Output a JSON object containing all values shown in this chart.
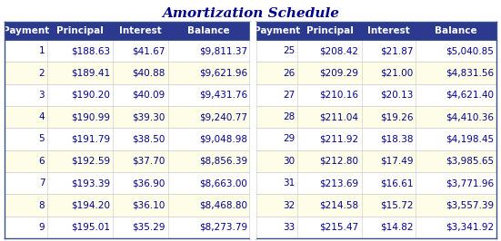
{
  "title": "Amortization Schedule",
  "header": [
    "Payment",
    "Principal",
    "Interest",
    "Balance"
  ],
  "left_data": [
    [
      "1",
      "$188.63",
      "$41.67",
      "$9,811.37"
    ],
    [
      "2",
      "$189.41",
      "$40.88",
      "$9,621.96"
    ],
    [
      "3",
      "$190.20",
      "$40.09",
      "$9,431.76"
    ],
    [
      "4",
      "$190.99",
      "$39.30",
      "$9,240.77"
    ],
    [
      "5",
      "$191.79",
      "$38.50",
      "$9,048.98"
    ],
    [
      "6",
      "$192.59",
      "$37.70",
      "$8,856.39"
    ],
    [
      "7",
      "$193.39",
      "$36.90",
      "$8,663.00"
    ],
    [
      "8",
      "$194.20",
      "$36.10",
      "$8,468.80"
    ],
    [
      "9",
      "$195.01",
      "$35.29",
      "$8,273.79"
    ]
  ],
  "right_data": [
    [
      "25",
      "$208.42",
      "$21.87",
      "$5,040.85"
    ],
    [
      "26",
      "$209.29",
      "$21.00",
      "$4,831.56"
    ],
    [
      "27",
      "$210.16",
      "$20.13",
      "$4,621.40"
    ],
    [
      "28",
      "$211.04",
      "$19.26",
      "$4,410.36"
    ],
    [
      "29",
      "$211.92",
      "$18.38",
      "$4,198.45"
    ],
    [
      "30",
      "$212.80",
      "$17.49",
      "$3,985.65"
    ],
    [
      "31",
      "$213.69",
      "$16.61",
      "$3,771.96"
    ],
    [
      "32",
      "$214.58",
      "$15.72",
      "$3,557.39"
    ],
    [
      "33",
      "$215.47",
      "$14.82",
      "$3,341.92"
    ]
  ],
  "header_bg": "#2B3A8F",
  "header_fg": "#FFFFFF",
  "row_white_bg": "#FFFFFF",
  "row_cream_bg": "#FDFDE8",
  "cell_text_color": "#00008B",
  "title_color": "#00008B",
  "title_fontsize": 11,
  "header_fontsize": 7.5,
  "cell_fontsize": 7.5,
  "border_color": "#3A5088",
  "divider_color": "#C8C8C8",
  "gap_color": "#FFFFFF",
  "fig_bg": "#FFFFFF"
}
